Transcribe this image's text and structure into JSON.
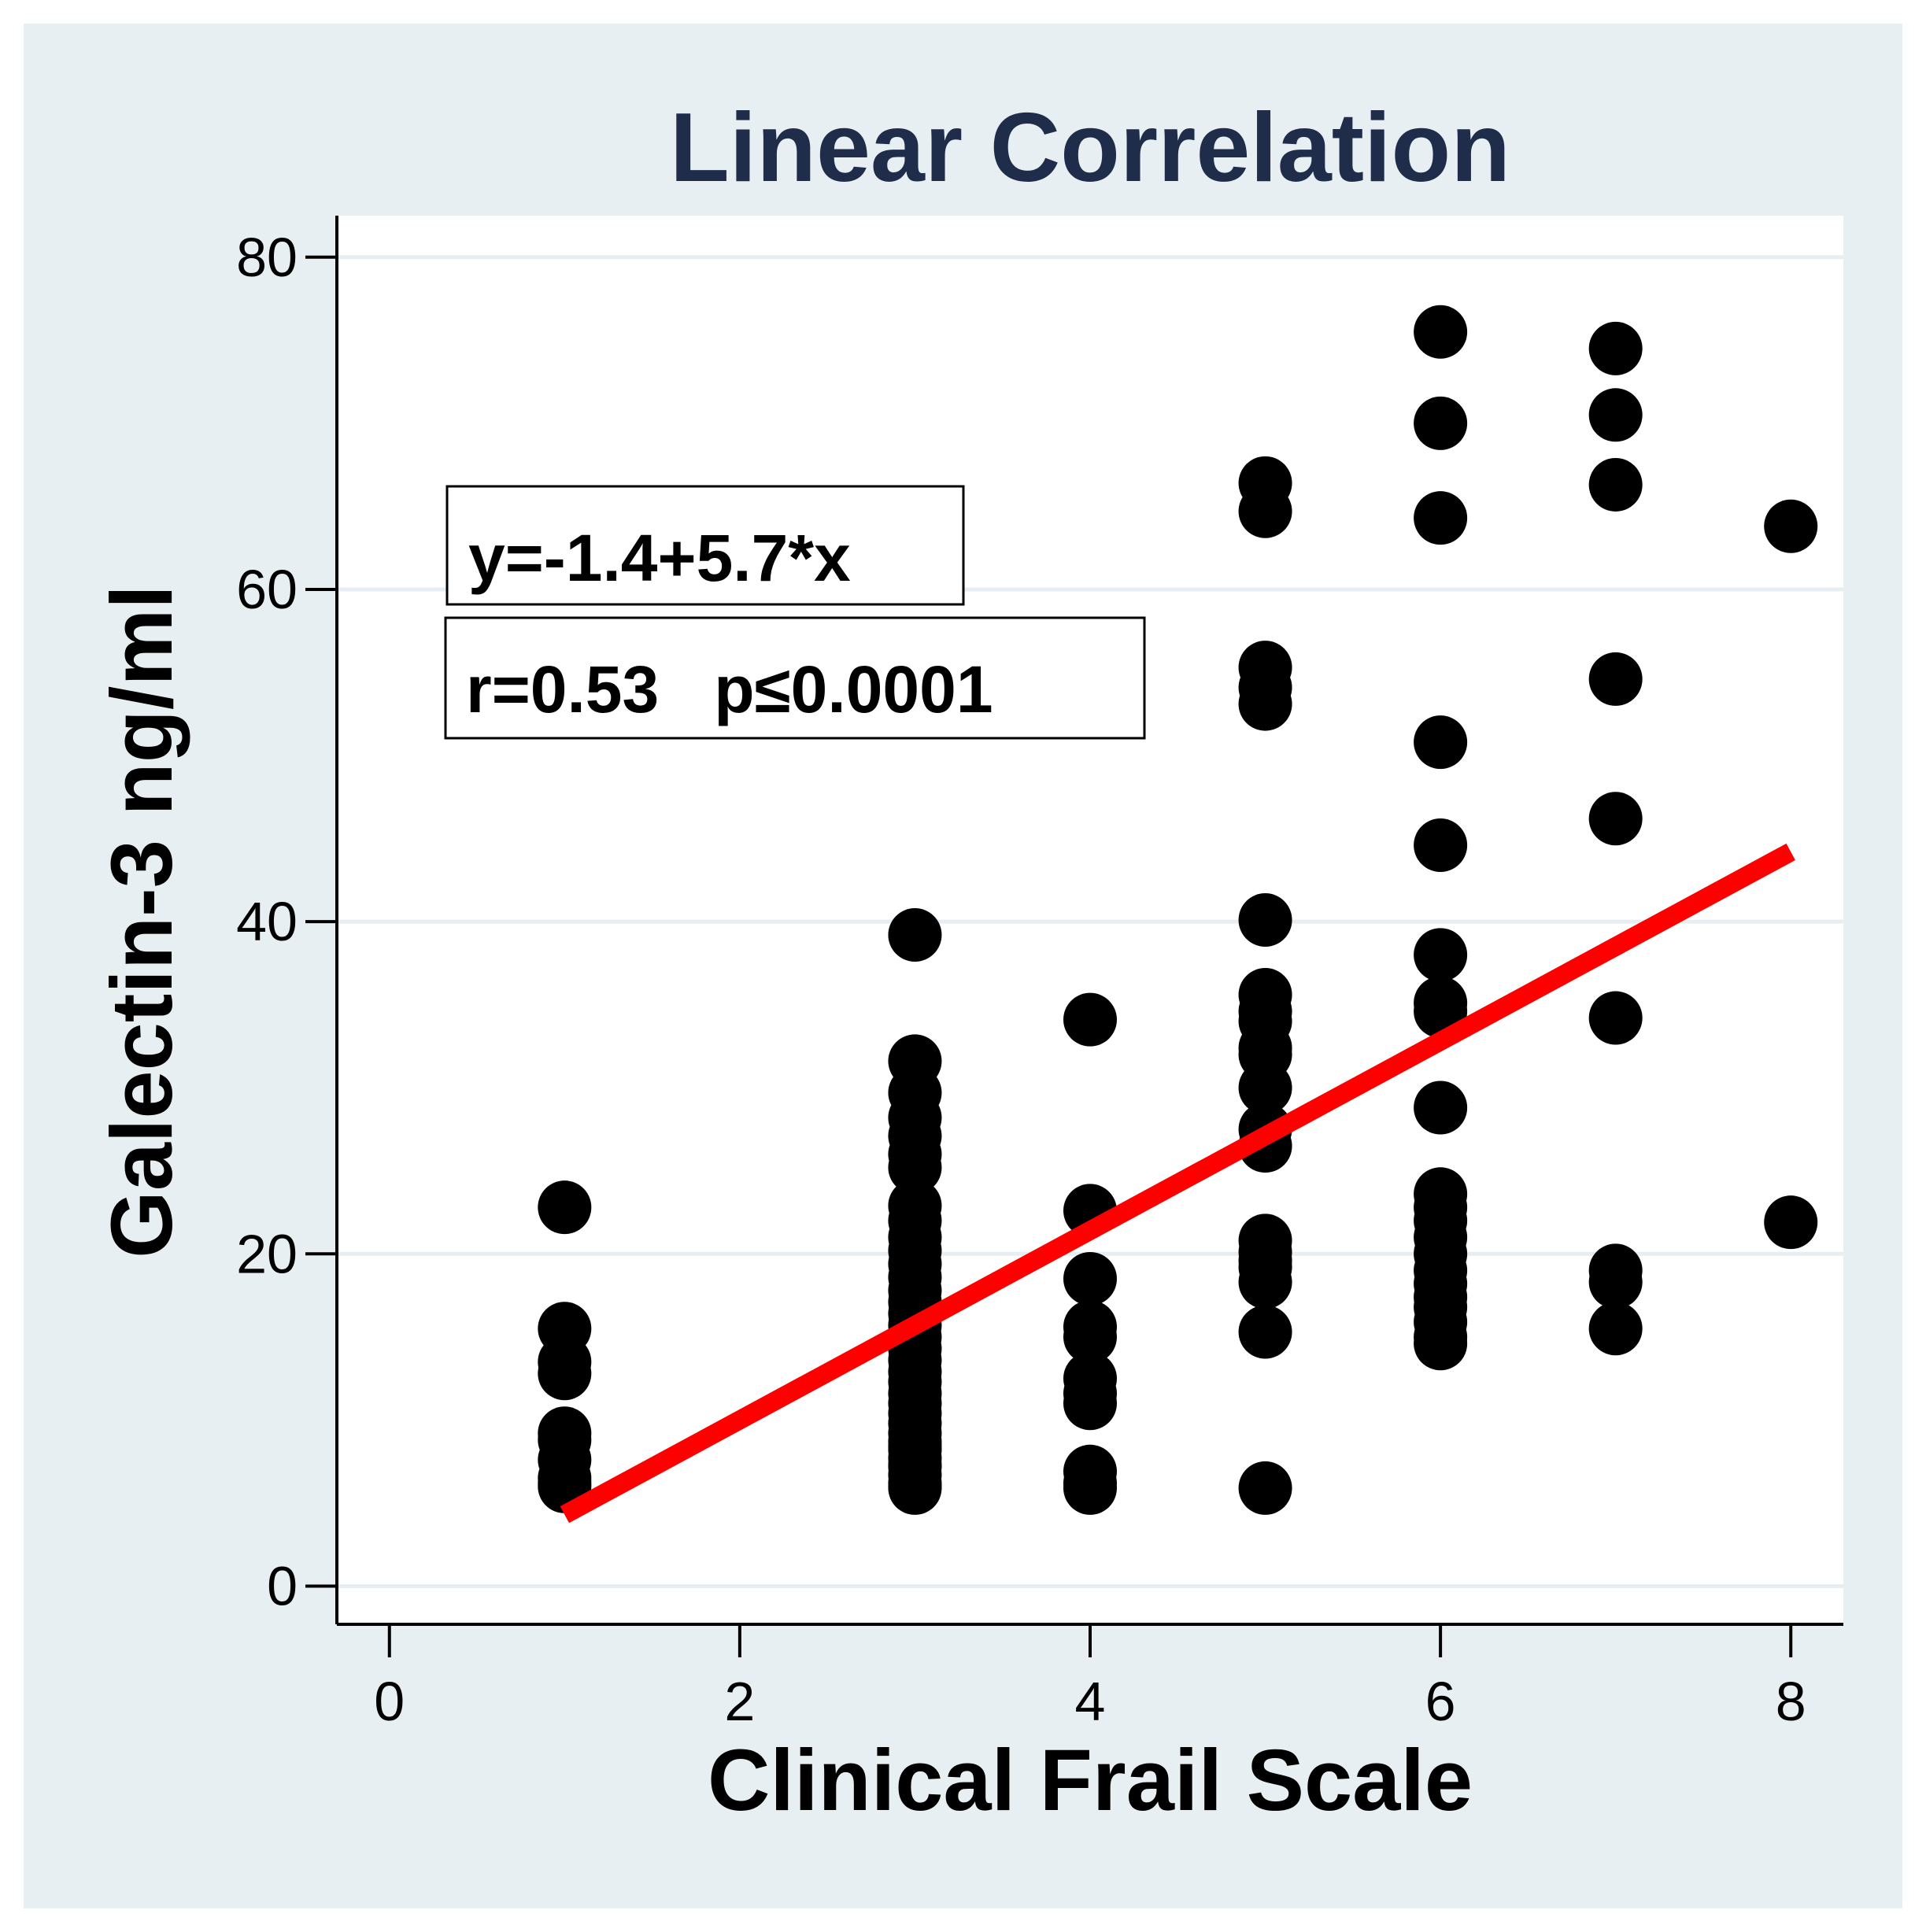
{
  "chart_data": {
    "type": "scatter",
    "title": "Linear Correlation",
    "xlabel": "Clinical Frail Scale",
    "ylabel": "Galectin-3 ng/ml",
    "xlim": [
      -0.3,
      8.3
    ],
    "ylim": [
      -2.3,
      82.5
    ],
    "x_ticks": [
      0,
      2,
      4,
      6,
      8
    ],
    "y_ticks": [
      0,
      20,
      40,
      60,
      80
    ],
    "grid": true,
    "annotations": {
      "equation": "y=-1.4+5.7*x",
      "stats": "r=0.53   p≤0.0001"
    },
    "fit_line": {
      "intercept": -1.4,
      "slope": 5.7,
      "x_start": 1,
      "x_end": 8
    },
    "series": [
      {
        "name": "Clinical Frail Scale 1",
        "x": [
          1,
          1,
          1,
          1,
          1,
          1,
          1,
          1,
          1,
          1
        ],
        "y": [
          22.8,
          15.5,
          13.5,
          12.8,
          9.2,
          8.8,
          7.6,
          6.2,
          6.0,
          6.5
        ]
      },
      {
        "name": "Clinical Frail Scale 3",
        "x": [
          3,
          3,
          3,
          3,
          3,
          3,
          3,
          3,
          3,
          3,
          3,
          3,
          3,
          3,
          3,
          3,
          3,
          3,
          3,
          3,
          3,
          3,
          3,
          3,
          3,
          3,
          3,
          3,
          3,
          3,
          3,
          3,
          3,
          3,
          3,
          3,
          3
        ],
        "y": [
          39.2,
          31.6,
          29.7,
          28.2,
          27.1,
          26.0,
          25.2,
          22.9,
          22.0,
          21.0,
          20.2,
          19.4,
          18.6,
          17.8,
          17.1,
          16.4,
          15.7,
          15.0,
          14.3,
          13.6,
          12.9,
          12.3,
          11.6,
          11.0,
          10.4,
          9.8,
          9.2,
          8.7,
          8.2,
          7.7,
          7.2,
          6.7,
          6.2,
          6.0,
          5.9,
          7.3,
          8.4
        ]
      },
      {
        "name": "Clinical Frail Scale 4",
        "x": [
          4,
          4,
          4,
          4,
          4,
          4,
          4,
          4,
          4,
          4,
          4
        ],
        "y": [
          34.1,
          22.6,
          18.5,
          15.6,
          15.0,
          12.5,
          11.6,
          11.0,
          6.9,
          6.2,
          5.9
        ]
      },
      {
        "name": "Clinical Frail Scale 5",
        "x": [
          5,
          5,
          5,
          5,
          5,
          5,
          5,
          5,
          5,
          5,
          5,
          5,
          5,
          5,
          5,
          5,
          5,
          5,
          5,
          5,
          5
        ],
        "y": [
          66.4,
          64.7,
          55.3,
          54.1,
          53.1,
          40.1,
          35.6,
          34.6,
          34.0,
          32.4,
          32.0,
          30.0,
          27.5,
          26.5,
          20.8,
          19.6,
          19.2,
          18.3,
          15.3,
          5.9,
          20.1
        ]
      },
      {
        "name": "Clinical Frail Scale 6",
        "x": [
          6,
          6,
          6,
          6,
          6,
          6,
          6,
          6,
          6,
          6,
          6,
          6,
          6,
          6,
          6,
          6,
          6,
          6,
          6,
          6,
          6
        ],
        "y": [
          75.5,
          70.0,
          64.3,
          50.8,
          44.6,
          38.0,
          35.1,
          34.6,
          28.8,
          23.6,
          22.8,
          22.0,
          21.0,
          20.0,
          19.0,
          18.2,
          17.4,
          16.8,
          15.9,
          15.0,
          14.6
        ]
      },
      {
        "name": "Clinical Frail Scale 7",
        "x": [
          7,
          7,
          7,
          7,
          7,
          7,
          7,
          7,
          7
        ],
        "y": [
          74.5,
          70.5,
          66.3,
          54.6,
          46.2,
          34.2,
          19.0,
          18.3,
          15.5
        ]
      },
      {
        "name": "Clinical Frail Scale 8",
        "x": [
          8,
          8
        ],
        "y": [
          63.8,
          21.9
        ]
      }
    ],
    "colors": {
      "outer_background": "#e8eff2",
      "plot_background": "#ffffff",
      "title": "#1f2d4b",
      "points": "#000000",
      "fit_line": "#ff0000",
      "grid": "#e6eef3",
      "axis": "#000000"
    }
  }
}
